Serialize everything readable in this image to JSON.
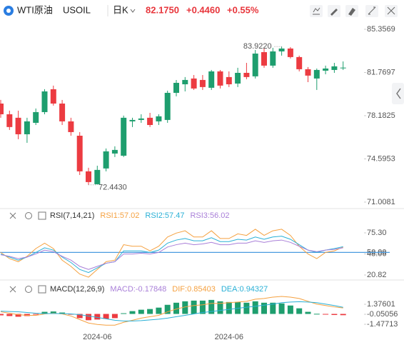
{
  "header": {
    "name": "WTI原油",
    "symbol": "USOIL",
    "period": "日K",
    "price": "82.1750",
    "change": "+0.4460",
    "change_pct": "+0.55%"
  },
  "chart_data": [
    {
      "type": "candlestick",
      "up_color": "#1e9e6e",
      "down_color": "#ec3b41",
      "open": [
        79.19,
        78.3,
        78.01,
        76.64,
        77.59,
        78.48,
        80.38,
        79.19,
        77.71,
        76.52,
        73.56,
        72.49,
        73.8,
        75.04,
        74.86,
        77.71,
        77.83,
        78.01,
        77.71,
        77.83,
        80.08,
        80.79,
        81.27,
        81.15,
        80.5,
        81.86,
        81.39,
        80.85,
        81.74,
        81.45,
        83.46,
        82.34,
        83.52,
        83.76,
        83.05,
        82.04,
        81.27,
        81.92,
        81.98,
        82.16
      ],
      "high": [
        79.49,
        78.6,
        78.6,
        78.01,
        78.78,
        80.38,
        80.68,
        79.49,
        78.01,
        76.82,
        73.86,
        74.03,
        75.46,
        75.64,
        78.19,
        78.01,
        78.3,
        78.42,
        78.3,
        80.26,
        81.15,
        81.39,
        81.56,
        81.56,
        81.98,
        81.98,
        81.86,
        82.16,
        82.57,
        83.64,
        83.76,
        83.82,
        83.922,
        83.88,
        83.17,
        82.22,
        82.1,
        82.34,
        82.57,
        82.69
      ],
      "low": [
        78.01,
        77.0,
        76.23,
        75.93,
        77.41,
        78.3,
        79.02,
        77.41,
        76.52,
        73.26,
        72.443,
        72.46,
        73.56,
        74.75,
        74.75,
        77.24,
        77.59,
        77.24,
        77.41,
        77.59,
        79.79,
        80.2,
        80.32,
        80.32,
        80.32,
        80.44,
        80.56,
        80.56,
        81.21,
        81.27,
        82.16,
        82.16,
        83.17,
        82.93,
        81.86,
        80.97,
        80.32,
        81.62,
        81.74,
        81.98
      ],
      "close": [
        78.3,
        77.24,
        76.64,
        77.71,
        78.48,
        80.2,
        79.19,
        77.71,
        76.82,
        73.56,
        72.67,
        73.68,
        75.22,
        75.34,
        78.01,
        77.83,
        77.95,
        77.41,
        78.13,
        80.08,
        80.91,
        81.15,
        80.44,
        80.56,
        81.86,
        80.68,
        80.79,
        81.74,
        81.39,
        83.34,
        82.34,
        83.52,
        83.76,
        83.05,
        82.04,
        81.51,
        81.98,
        82.1,
        82.28,
        82.175
      ],
      "high_label": {
        "value": 83.922,
        "label": "83.9220"
      },
      "low_label": {
        "value": 72.443,
        "label": "72.4430"
      },
      "ylim": [
        70.47,
        86.01
      ],
      "yticks": [
        85.3569,
        81.7697,
        78.1825,
        74.5953,
        71.0081
      ]
    },
    {
      "type": "line",
      "title": "RSI(7,14,21)",
      "series": [
        {
          "name": "RSI1:57.02",
          "color": "#f5a140",
          "values": [
            50,
            42,
            38,
            45,
            55,
            62,
            55,
            40,
            32,
            22,
            18,
            28,
            38,
            40,
            60,
            58,
            58,
            52,
            58,
            70,
            75,
            78,
            70,
            70,
            78,
            68,
            68,
            74,
            72,
            80,
            72,
            78,
            80,
            72,
            58,
            48,
            42,
            50,
            52,
            57.02
          ]
        },
        {
          "name": "RSI2:57.47",
          "color": "#2ab0d6",
          "values": [
            48,
            44,
            40,
            44,
            50,
            56,
            53,
            44,
            37,
            28,
            24,
            30,
            36,
            38,
            52,
            52,
            52,
            50,
            53,
            62,
            66,
            68,
            65,
            65,
            69,
            64,
            64,
            67,
            66,
            70,
            67,
            70,
            71,
            67,
            60,
            53,
            50,
            53,
            55,
            57.47
          ]
        },
        {
          "name": "RSI3:56.02",
          "color": "#a97fd8",
          "values": [
            47,
            45,
            42,
            44,
            48,
            53,
            51,
            45,
            40,
            32,
            28,
            32,
            36,
            38,
            48,
            48,
            49,
            48,
            50,
            57,
            60,
            62,
            60,
            61,
            63,
            60,
            60,
            62,
            62,
            65,
            63,
            65,
            66,
            63,
            58,
            53,
            51,
            53,
            54,
            56.02
          ]
        }
      ],
      "hline": {
        "value": 50,
        "color": "#4a9be0"
      },
      "ylim": [
        14.36,
        90.07
      ],
      "yticks": [
        {
          "value": 75.3,
          "label": "75.30"
        },
        {
          "value": 50,
          "label": "50.00"
        },
        48.06,
        20.82
      ]
    },
    {
      "type": "macd",
      "title": "MACD(12,26,9)",
      "bars": {
        "name": "MACD:-0.17848",
        "color": "#a97fd8",
        "up_color": "#1e9e6e",
        "down_color": "#ec3b41",
        "values": [
          -0.2,
          -0.3,
          -0.4,
          -0.3,
          -0.1,
          0.3,
          0.35,
          0.2,
          -0.1,
          -0.6,
          -0.9,
          -0.8,
          -0.7,
          -0.6,
          0.1,
          0.4,
          0.6,
          0.7,
          0.9,
          1.3,
          1.6,
          1.8,
          1.9,
          1.9,
          2.0,
          1.8,
          1.7,
          1.7,
          1.6,
          1.8,
          1.6,
          1.6,
          1.5,
          1.2,
          0.8,
          0.3,
          0.02,
          -0.1,
          -0.15,
          -0.17848
        ]
      },
      "series": [
        {
          "name": "DIF:0.85403",
          "color": "#f5a140",
          "values": [
            0.3,
            0.1,
            -0.1,
            -0.2,
            -0.2,
            0.0,
            0.1,
            0.0,
            -0.3,
            -0.8,
            -1.3,
            -1.5,
            -1.6,
            -1.6,
            -1.2,
            -0.9,
            -0.6,
            -0.4,
            -0.2,
            0.3,
            0.7,
            1.0,
            1.2,
            1.3,
            1.5,
            1.5,
            1.6,
            1.7,
            1.8,
            2.1,
            2.2,
            2.4,
            2.5,
            2.4,
            2.2,
            1.8,
            1.4,
            1.2,
            1.0,
            0.85403
          ]
        },
        {
          "name": "DEA:0.94327",
          "color": "#2ab0d6",
          "values": [
            0.4,
            0.35,
            0.3,
            0.2,
            0.1,
            0.05,
            0.05,
            0.05,
            0.0,
            -0.1,
            -0.3,
            -0.5,
            -0.7,
            -0.9,
            -1.0,
            -1.0,
            -0.95,
            -0.85,
            -0.75,
            -0.6,
            -0.4,
            -0.2,
            0.0,
            0.2,
            0.35,
            0.5,
            0.65,
            0.8,
            0.95,
            1.1,
            1.25,
            1.4,
            1.6,
            1.7,
            1.75,
            1.7,
            1.6,
            1.4,
            1.2,
            0.94327
          ]
        }
      ],
      "categories": [
        null,
        null,
        null,
        null,
        null,
        null,
        null,
        null,
        null,
        null,
        null,
        "2024-06",
        null,
        null,
        null,
        null,
        null,
        null,
        null,
        null,
        null,
        null,
        null,
        null,
        null,
        null,
        "2024-06",
        null,
        null,
        null,
        null,
        null,
        null,
        null,
        null,
        null,
        null,
        null,
        null,
        null
      ],
      "ylim": [
        -2.293,
        3.007
      ],
      "yticks": [
        1.37601,
        -0.05056,
        -1.47713
      ]
    }
  ]
}
